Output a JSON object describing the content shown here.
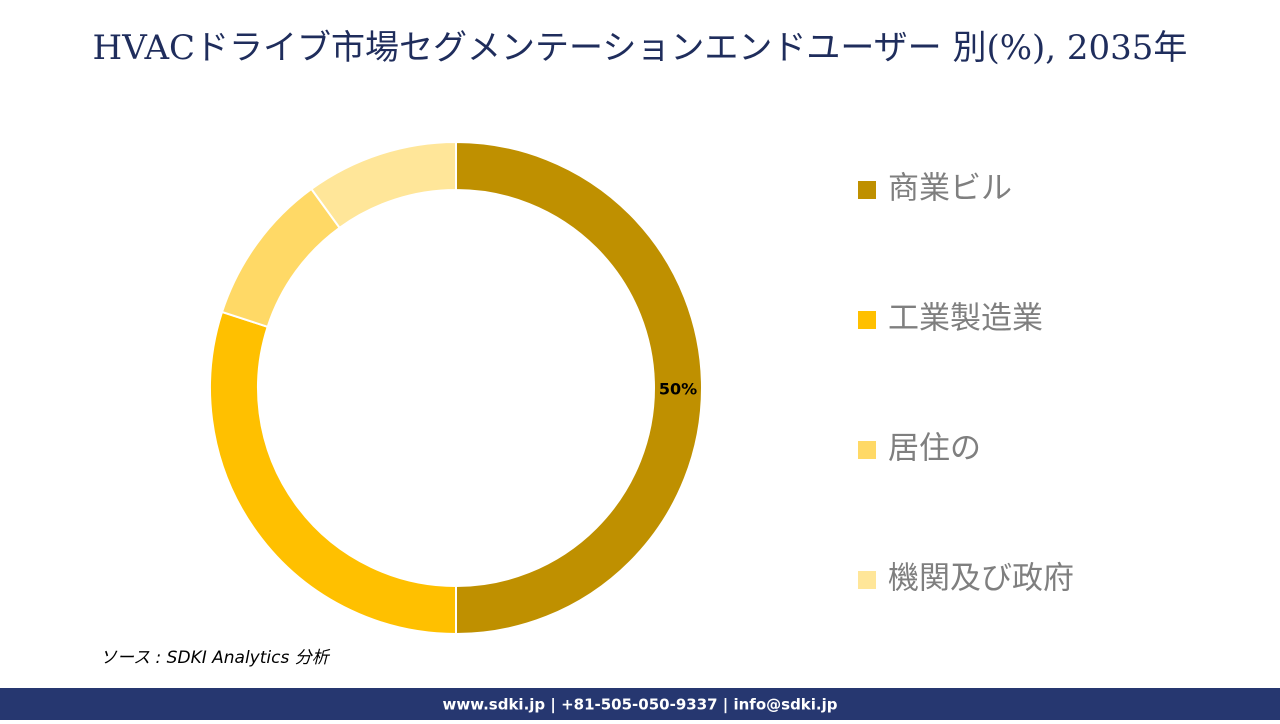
{
  "chart_data": {
    "type": "donut",
    "title": "HVACドライブ市場セグメンテーションエンドユーザー 別(%), 2035年",
    "categories": [
      "商業ビル",
      "工業製造業",
      "居住の",
      "機関及び政府"
    ],
    "values": [
      50,
      30,
      10,
      10
    ],
    "value_labels": [
      "50%",
      null,
      null,
      null
    ],
    "colors": [
      "#bf9000",
      "#ffc000",
      "#ffd966",
      "#ffe699"
    ],
    "legend": "right"
  },
  "source": "ソース : SDKI Analytics 分析",
  "footer": "www.sdki.jp | +81-505-050-9337 | info@sdki.jp"
}
